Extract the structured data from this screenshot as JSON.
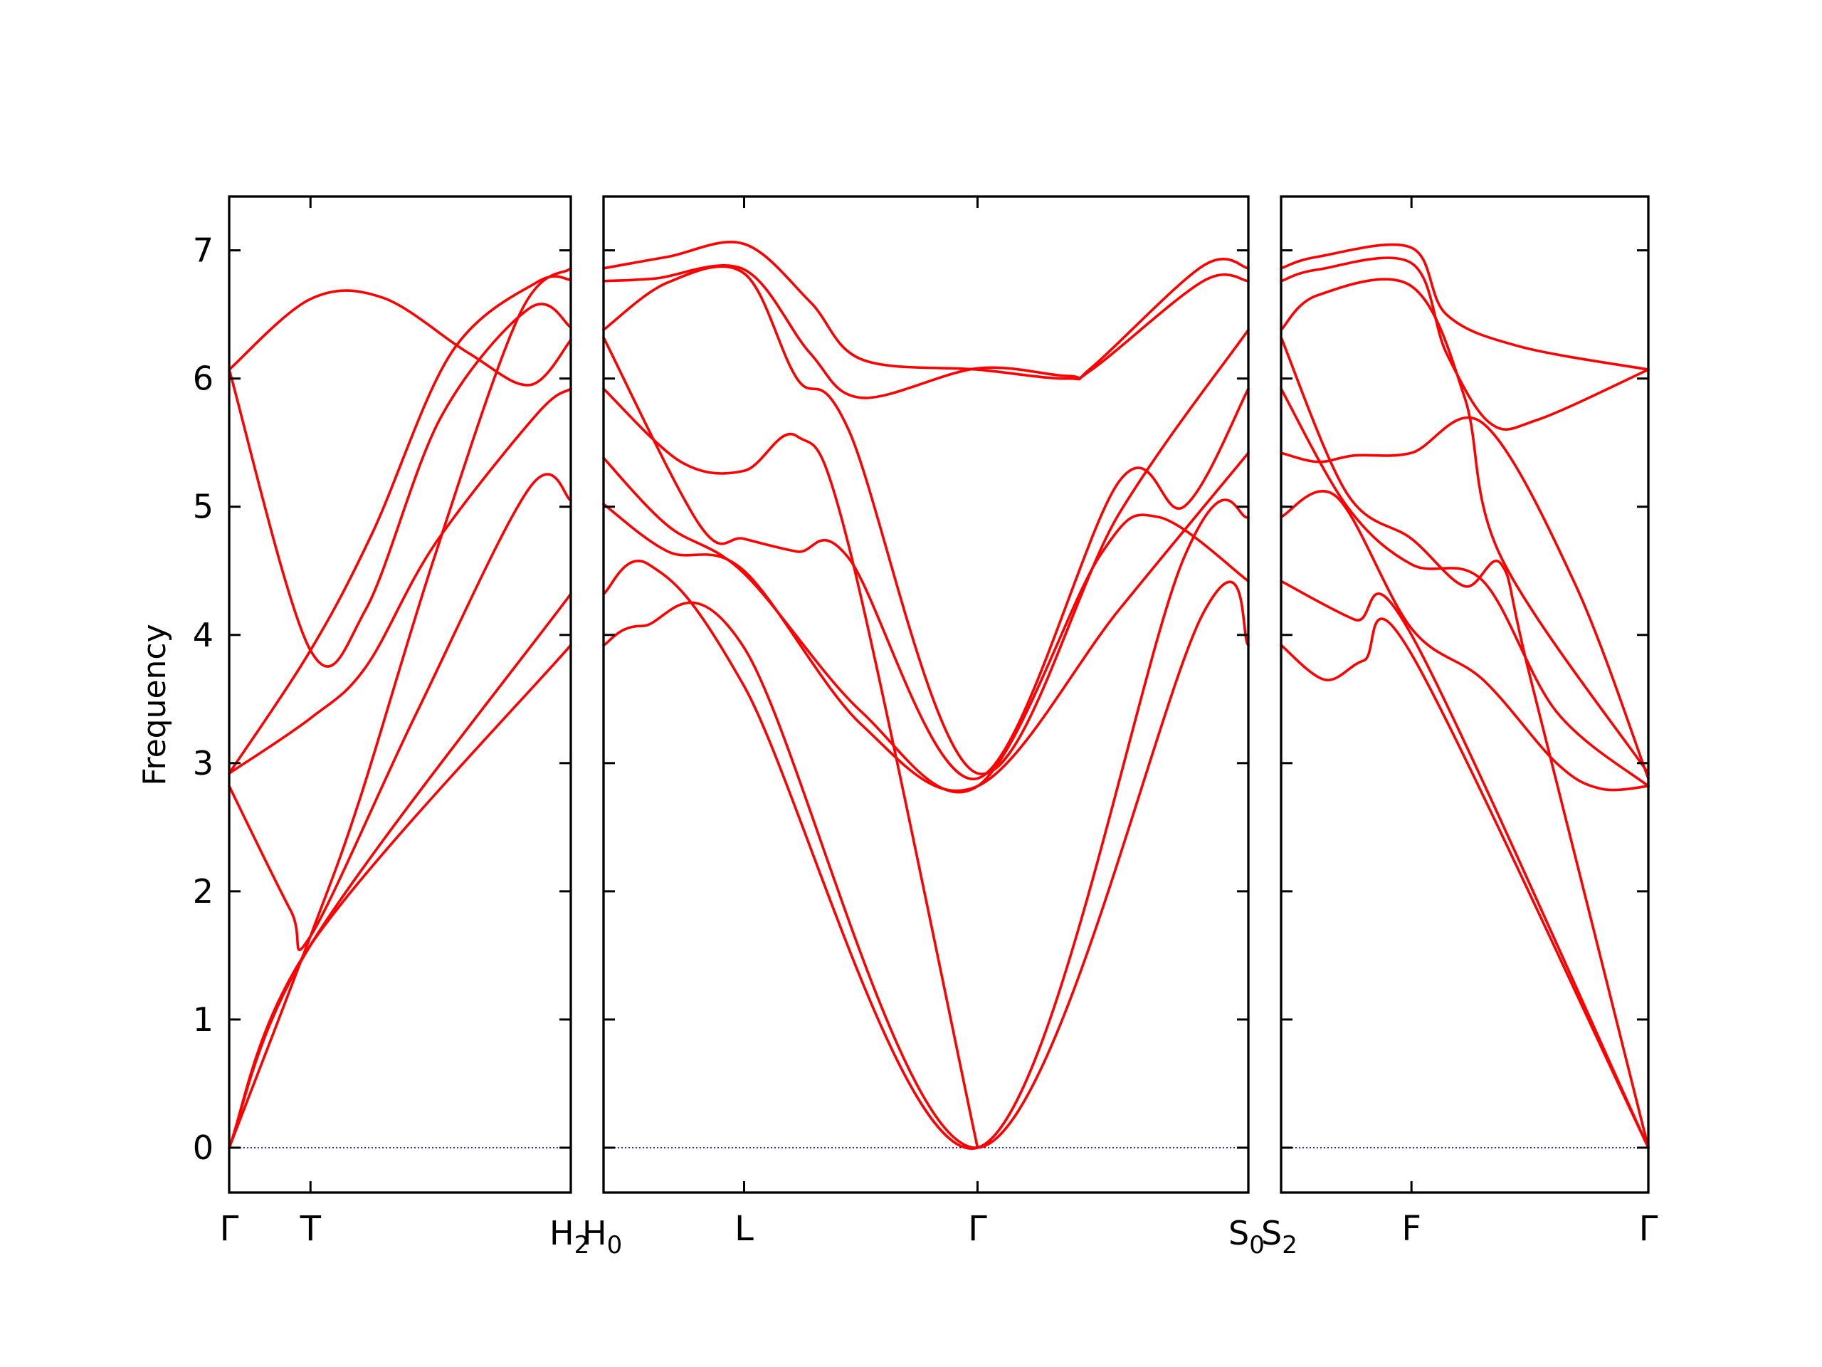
{
  "chart_data": {
    "type": "line",
    "ylabel": "Frequency",
    "xlabel": "",
    "ylim": [
      -0.35,
      7.42
    ],
    "yticks": [
      0,
      1,
      2,
      3,
      4,
      5,
      6,
      7
    ],
    "grid": false,
    "colors": {
      "bands": "#ff0000",
      "zero_line": "#0000cc",
      "axes": "#000000"
    },
    "segment_labels": [
      "H",
      "H",
      "S",
      "S"
    ],
    "segment_label_subscripts": [
      "2",
      "0",
      "0",
      "2"
    ],
    "panels": [
      {
        "xlim": [
          0,
          1
        ],
        "ticks": [
          {
            "x": 0,
            "label": "Γ"
          },
          {
            "x": 0.238,
            "label": "T"
          }
        ],
        "bands": [
          {
            "x": [
              0,
              0.238,
              1
            ],
            "y": [
              0,
              1.58,
              3.92
            ]
          },
          {
            "x": [
              0,
              0.238,
              1
            ],
            "y": [
              0,
              1.58,
              4.32
            ]
          },
          {
            "x": [
              0,
              0.18,
              0.238,
              0.55,
              0.88,
              1
            ],
            "y": [
              2.82,
              1.85,
              1.65,
              3.4,
              5.15,
              5.05
            ]
          },
          {
            "x": [
              0,
              0.238,
              0.4,
              0.6,
              0.9,
              1
            ],
            "y": [
              2.92,
              3.35,
              3.75,
              4.7,
              5.72,
              5.92
            ]
          },
          {
            "x": [
              0,
              0.238,
              0.4,
              0.62,
              0.88,
              1
            ],
            "y": [
              6.07,
              3.88,
              4.2,
              5.7,
              6.55,
              6.4
            ]
          },
          {
            "x": [
              0,
              0.238,
              0.42,
              0.65,
              0.9,
              1
            ],
            "y": [
              2.92,
              3.88,
              4.8,
              6.2,
              6.75,
              6.77
            ]
          },
          {
            "x": [
              0,
              0.238,
              0.45,
              0.7,
              0.88,
              1
            ],
            "y": [
              6.07,
              6.62,
              6.63,
              6.2,
              5.95,
              6.3
            ]
          },
          {
            "x": [
              0,
              0.238,
              0.38,
              0.6,
              0.85,
              1
            ],
            "y": [
              0,
              1.65,
              2.7,
              4.6,
              6.5,
              6.86
            ]
          }
        ]
      },
      {
        "xlim": [
          0,
          1
        ],
        "ticks": [
          {
            "x": 0.218,
            "label": "L"
          },
          {
            "x": 0.58,
            "label": "Γ"
          }
        ],
        "bands": [
          {
            "x": [
              0,
              0.06,
              0.218,
              0.58,
              0.93,
              1
            ],
            "y": [
              3.92,
              4.07,
              3.9,
              0,
              4.17,
              3.92
            ]
          },
          {
            "x": [
              0,
              0.07,
              0.218,
              0.58,
              0.9,
              1
            ],
            "y": [
              4.32,
              4.55,
              3.6,
              0,
              4.6,
              4.92
            ]
          },
          {
            "x": [
              0,
              0.1,
              0.218,
              0.4,
              0.58,
              0.8,
              1
            ],
            "y": [
              5.02,
              4.65,
              4.5,
              3.3,
              2.82,
              4.2,
              5.42
            ]
          },
          {
            "x": [
              0,
              0.1,
              0.218,
              0.4,
              0.58,
              0.77,
              0.86,
              1
            ],
            "y": [
              5.38,
              4.85,
              4.48,
              3.4,
              2.82,
              4.62,
              4.92,
              4.42
            ]
          },
          {
            "x": [
              0,
              0.12,
              0.218,
              0.3,
              0.38,
              0.58
            ],
            "y": [
              5.92,
              5.35,
              5.28,
              5.55,
              4.7,
              0
            ]
          },
          {
            "x": [
              0,
              0.15,
              0.218,
              0.3,
              0.38,
              0.58,
              0.8,
              0.9,
              1
            ],
            "y": [
              6.32,
              4.85,
              4.75,
              4.65,
              4.6,
              2.88,
              5.2,
              5.0,
              5.92
            ]
          },
          {
            "x": [
              0,
              0.1,
              0.218,
              0.3,
              0.38,
              0.58,
              0.8,
              1
            ],
            "y": [
              6.38,
              6.75,
              6.82,
              6.0,
              5.6,
              2.92,
              4.95,
              6.38
            ]
          },
          {
            "x": [
              0,
              0.08,
              0.218,
              0.32,
              0.4,
              0.58,
              0.72,
              0.76,
              0.93,
              1
            ],
            "y": [
              6.76,
              6.78,
              6.85,
              6.2,
              5.85,
              6.08,
              6.02,
              6.08,
              6.76,
              6.76
            ]
          },
          {
            "x": [
              0,
              0.1,
              0.218,
              0.32,
              0.4,
              0.58,
              0.72,
              0.76,
              0.93,
              1
            ],
            "y": [
              6.86,
              6.95,
              7.05,
              6.6,
              6.15,
              6.07,
              6.0,
              6.1,
              6.88,
              6.86
            ]
          }
        ]
      },
      {
        "xlim": [
          0,
          1
        ],
        "ticks": [
          {
            "x": 0.355,
            "label": "F"
          },
          {
            "x": 1,
            "label": "Γ"
          }
        ],
        "bands": [
          {
            "x": [
              0,
              0.12,
              0.225,
              0.355,
              1
            ],
            "y": [
              3.92,
              3.65,
              3.8,
              3.85,
              0
            ]
          },
          {
            "x": [
              0,
              0.2,
              0.355,
              1
            ],
            "y": [
              4.42,
              4.12,
              4.0,
              0
            ]
          },
          {
            "x": [
              0,
              0.1,
              0.2,
              0.355,
              0.55,
              0.8,
              1
            ],
            "y": [
              5.42,
              5.35,
              5.4,
              5.42,
              5.65,
              4.4,
              2.88
            ]
          },
          {
            "x": [
              0,
              0.15,
              0.355,
              0.55,
              0.75,
              0.87,
              1
            ],
            "y": [
              4.92,
              5.08,
              4.05,
              3.65,
              3.0,
              2.8,
              2.82
            ]
          },
          {
            "x": [
              0,
              0.18,
              0.355,
              0.55,
              0.75,
              1
            ],
            "y": [
              5.92,
              5.0,
              4.55,
              4.42,
              3.4,
              2.82
            ]
          },
          {
            "x": [
              0,
              0.18,
              0.355,
              0.5,
              0.6,
              0.68,
              1
            ],
            "y": [
              6.32,
              5.1,
              4.75,
              4.38,
              4.55,
              3.65,
              0
            ]
          },
          {
            "x": [
              0,
              0.1,
              0.355,
              0.45,
              0.57,
              0.7,
              1
            ],
            "y": [
              6.76,
              6.85,
              6.9,
              6.2,
              5.65,
              5.68,
              6.07
            ]
          },
          {
            "x": [
              0,
              0.1,
              0.355,
              0.45,
              0.65,
              1
            ],
            "y": [
              6.86,
              6.95,
              7.02,
              6.5,
              6.25,
              6.07
            ]
          },
          {
            "x": [
              0,
              0.1,
              0.355,
              0.5,
              0.6,
              1
            ],
            "y": [
              6.38,
              6.65,
              6.72,
              5.85,
              4.6,
              2.92
            ]
          }
        ]
      }
    ]
  }
}
